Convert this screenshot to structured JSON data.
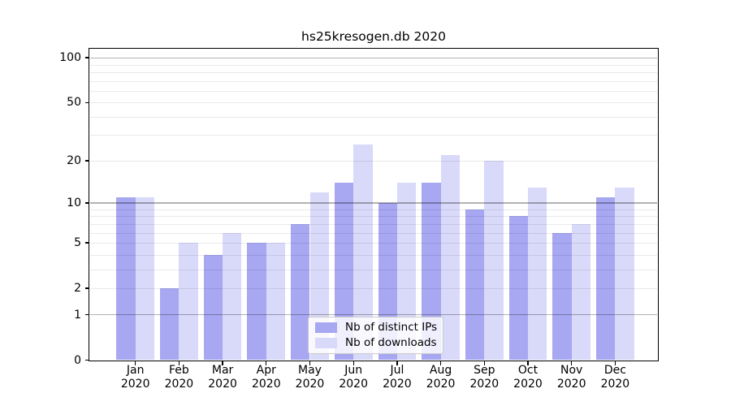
{
  "chart_data": {
    "type": "bar",
    "title": "hs25kresogen.db 2020",
    "categories": [
      "Jan\n2020",
      "Feb\n2020",
      "Mar\n2020",
      "Apr\n2020",
      "May\n2020",
      "Jun\n2020",
      "Jul\n2020",
      "Aug\n2020",
      "Sep\n2020",
      "Oct\n2020",
      "Nov\n2020",
      "Dec\n2020"
    ],
    "series": [
      {
        "name": "Nb of distinct IPs",
        "color": "#a7a7f2",
        "values": [
          11,
          2,
          4,
          5,
          7,
          14,
          10,
          14,
          9,
          8,
          6,
          11
        ]
      },
      {
        "name": "Nb of downloads",
        "color": "#d9d9f9",
        "values": [
          11,
          5,
          6,
          5,
          12,
          26,
          14,
          22,
          20,
          13,
          7,
          13
        ]
      }
    ],
    "xlabel": "",
    "ylabel": "",
    "yscale": "log1p",
    "ylim": [
      0,
      115
    ],
    "yticks": [
      100,
      50,
      20,
      10,
      5,
      2,
      1,
      0
    ],
    "ytick_labels": [
      "100",
      "50",
      "20",
      "10",
      "5",
      "2",
      "1",
      "0"
    ],
    "major_gridlines": [
      100,
      10,
      1
    ],
    "minor_gridlines": [
      90,
      80,
      70,
      60,
      50,
      40,
      30,
      20,
      9,
      8,
      7,
      6,
      5,
      4,
      3,
      2
    ],
    "grid": true,
    "legend_position": "lower-center",
    "colors": {
      "background": "#ffffff",
      "frame": "#000000",
      "major_grid": "#b3b3b3",
      "minor_grid": "#e8e8e8",
      "text": "#000000"
    }
  }
}
